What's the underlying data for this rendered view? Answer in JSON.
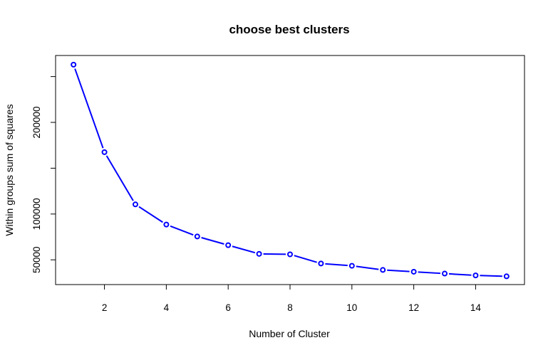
{
  "chart_data": {
    "type": "line",
    "title": "choose best clusters",
    "xlabel": "Number of Cluster",
    "ylabel": "Within groups sum of squares",
    "x": [
      1,
      2,
      3,
      4,
      5,
      6,
      7,
      8,
      9,
      10,
      11,
      12,
      13,
      14,
      15
    ],
    "y": [
      263000,
      167500,
      110500,
      88500,
      75500,
      66000,
      56500,
      56000,
      46000,
      43500,
      39000,
      37000,
      35000,
      33000,
      32000
    ],
    "xlim": [
      0.42,
      15.58
    ],
    "ylim": [
      23000,
      273000
    ],
    "x_ticks": [
      2,
      4,
      6,
      8,
      10,
      12,
      14
    ],
    "x_tick_labels": [
      "2",
      "4",
      "6",
      "8",
      "10",
      "12",
      "14"
    ],
    "y_ticks": [
      50000,
      100000,
      150000,
      200000,
      250000
    ],
    "y_tick_labels": [
      "50000",
      "100000",
      "",
      "200000",
      ""
    ],
    "line_color": "#0000ff",
    "marker": "open-circle",
    "grid": false,
    "legend": "none"
  }
}
